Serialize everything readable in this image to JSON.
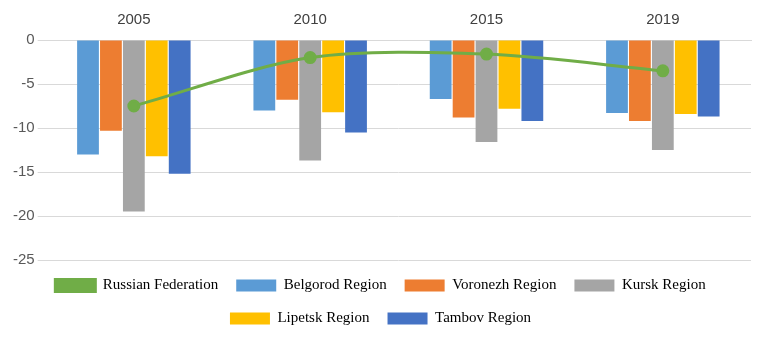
{
  "chart_data": {
    "type": "bar",
    "categories": [
      "2005",
      "2010",
      "2015",
      "2019"
    ],
    "series": [
      {
        "name": "Belgorod Region",
        "color": "#5b9bd5",
        "values": [
          -13,
          -8,
          -6.7,
          -8.3
        ]
      },
      {
        "name": "Voronezh Region",
        "color": "#ed7d31",
        "values": [
          -10.3,
          -6.8,
          -8.8,
          -9.2
        ]
      },
      {
        "name": "Kursk Region",
        "color": "#a5a5a5",
        "values": [
          -19.5,
          -13.7,
          -11.6,
          -12.5
        ]
      },
      {
        "name": "Lipetsk Region",
        "color": "#ffc000",
        "values": [
          -13.2,
          -8.2,
          -7.8,
          -8.4
        ]
      },
      {
        "name": "Tambov Region",
        "color": "#4472c4",
        "values": [
          -15.2,
          -10.5,
          -9.2,
          -8.7
        ]
      },
      {
        "name": "Russian Federation",
        "color": "#70ad47",
        "type": "line",
        "marker": "circle",
        "line_style": "solid",
        "values": [
          -7.5,
          -2,
          -1.6,
          -3.5
        ]
      }
    ],
    "ylim": [
      -25,
      0
    ],
    "yticks": [
      0,
      -5,
      -10,
      -15,
      -20,
      -25
    ],
    "grid": true,
    "legend": "bottom"
  }
}
